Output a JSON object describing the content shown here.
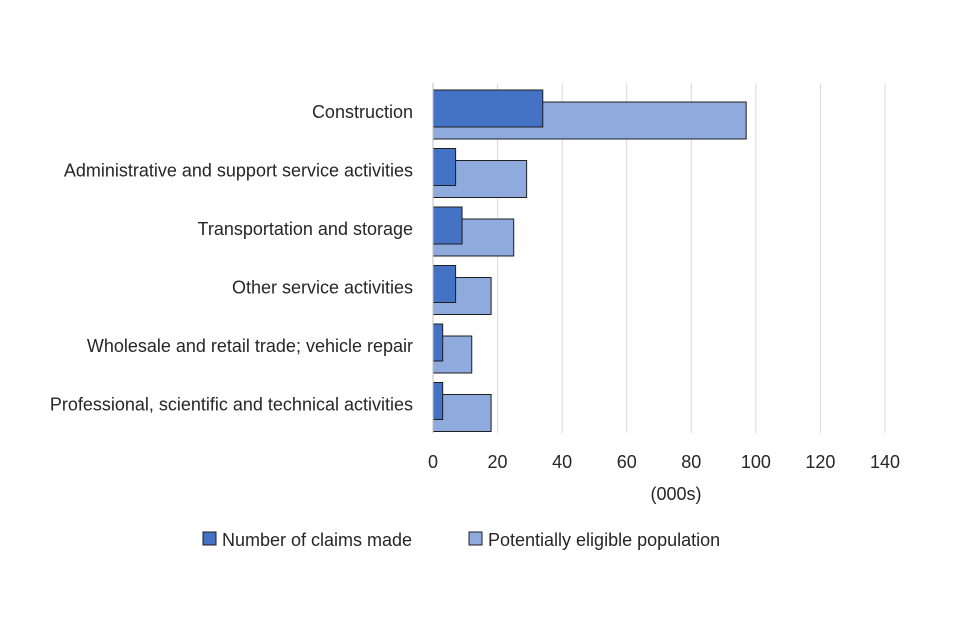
{
  "chart_data": {
    "type": "bar",
    "orientation": "horizontal",
    "categories": [
      "Construction",
      "Administrative and support service activities",
      "Transportation and storage",
      "Other service activities",
      "Wholesale and retail trade; vehicle repair",
      "Professional, scientific and technical activities"
    ],
    "series": [
      {
        "name": "Number of claims made",
        "color": "#4472C4",
        "values": [
          34,
          7,
          9,
          7,
          3,
          3
        ]
      },
      {
        "name": "Potentially eligible population",
        "color": "#8FAADC",
        "values": [
          97,
          29,
          25,
          18,
          12,
          18
        ]
      }
    ],
    "xlabel": "(000s)",
    "xlim": [
      0,
      140
    ],
    "xticks": [
      "0",
      "20",
      "40",
      "60",
      "80",
      "100",
      "120",
      "140"
    ],
    "grid": true,
    "legend": "bottom"
  }
}
